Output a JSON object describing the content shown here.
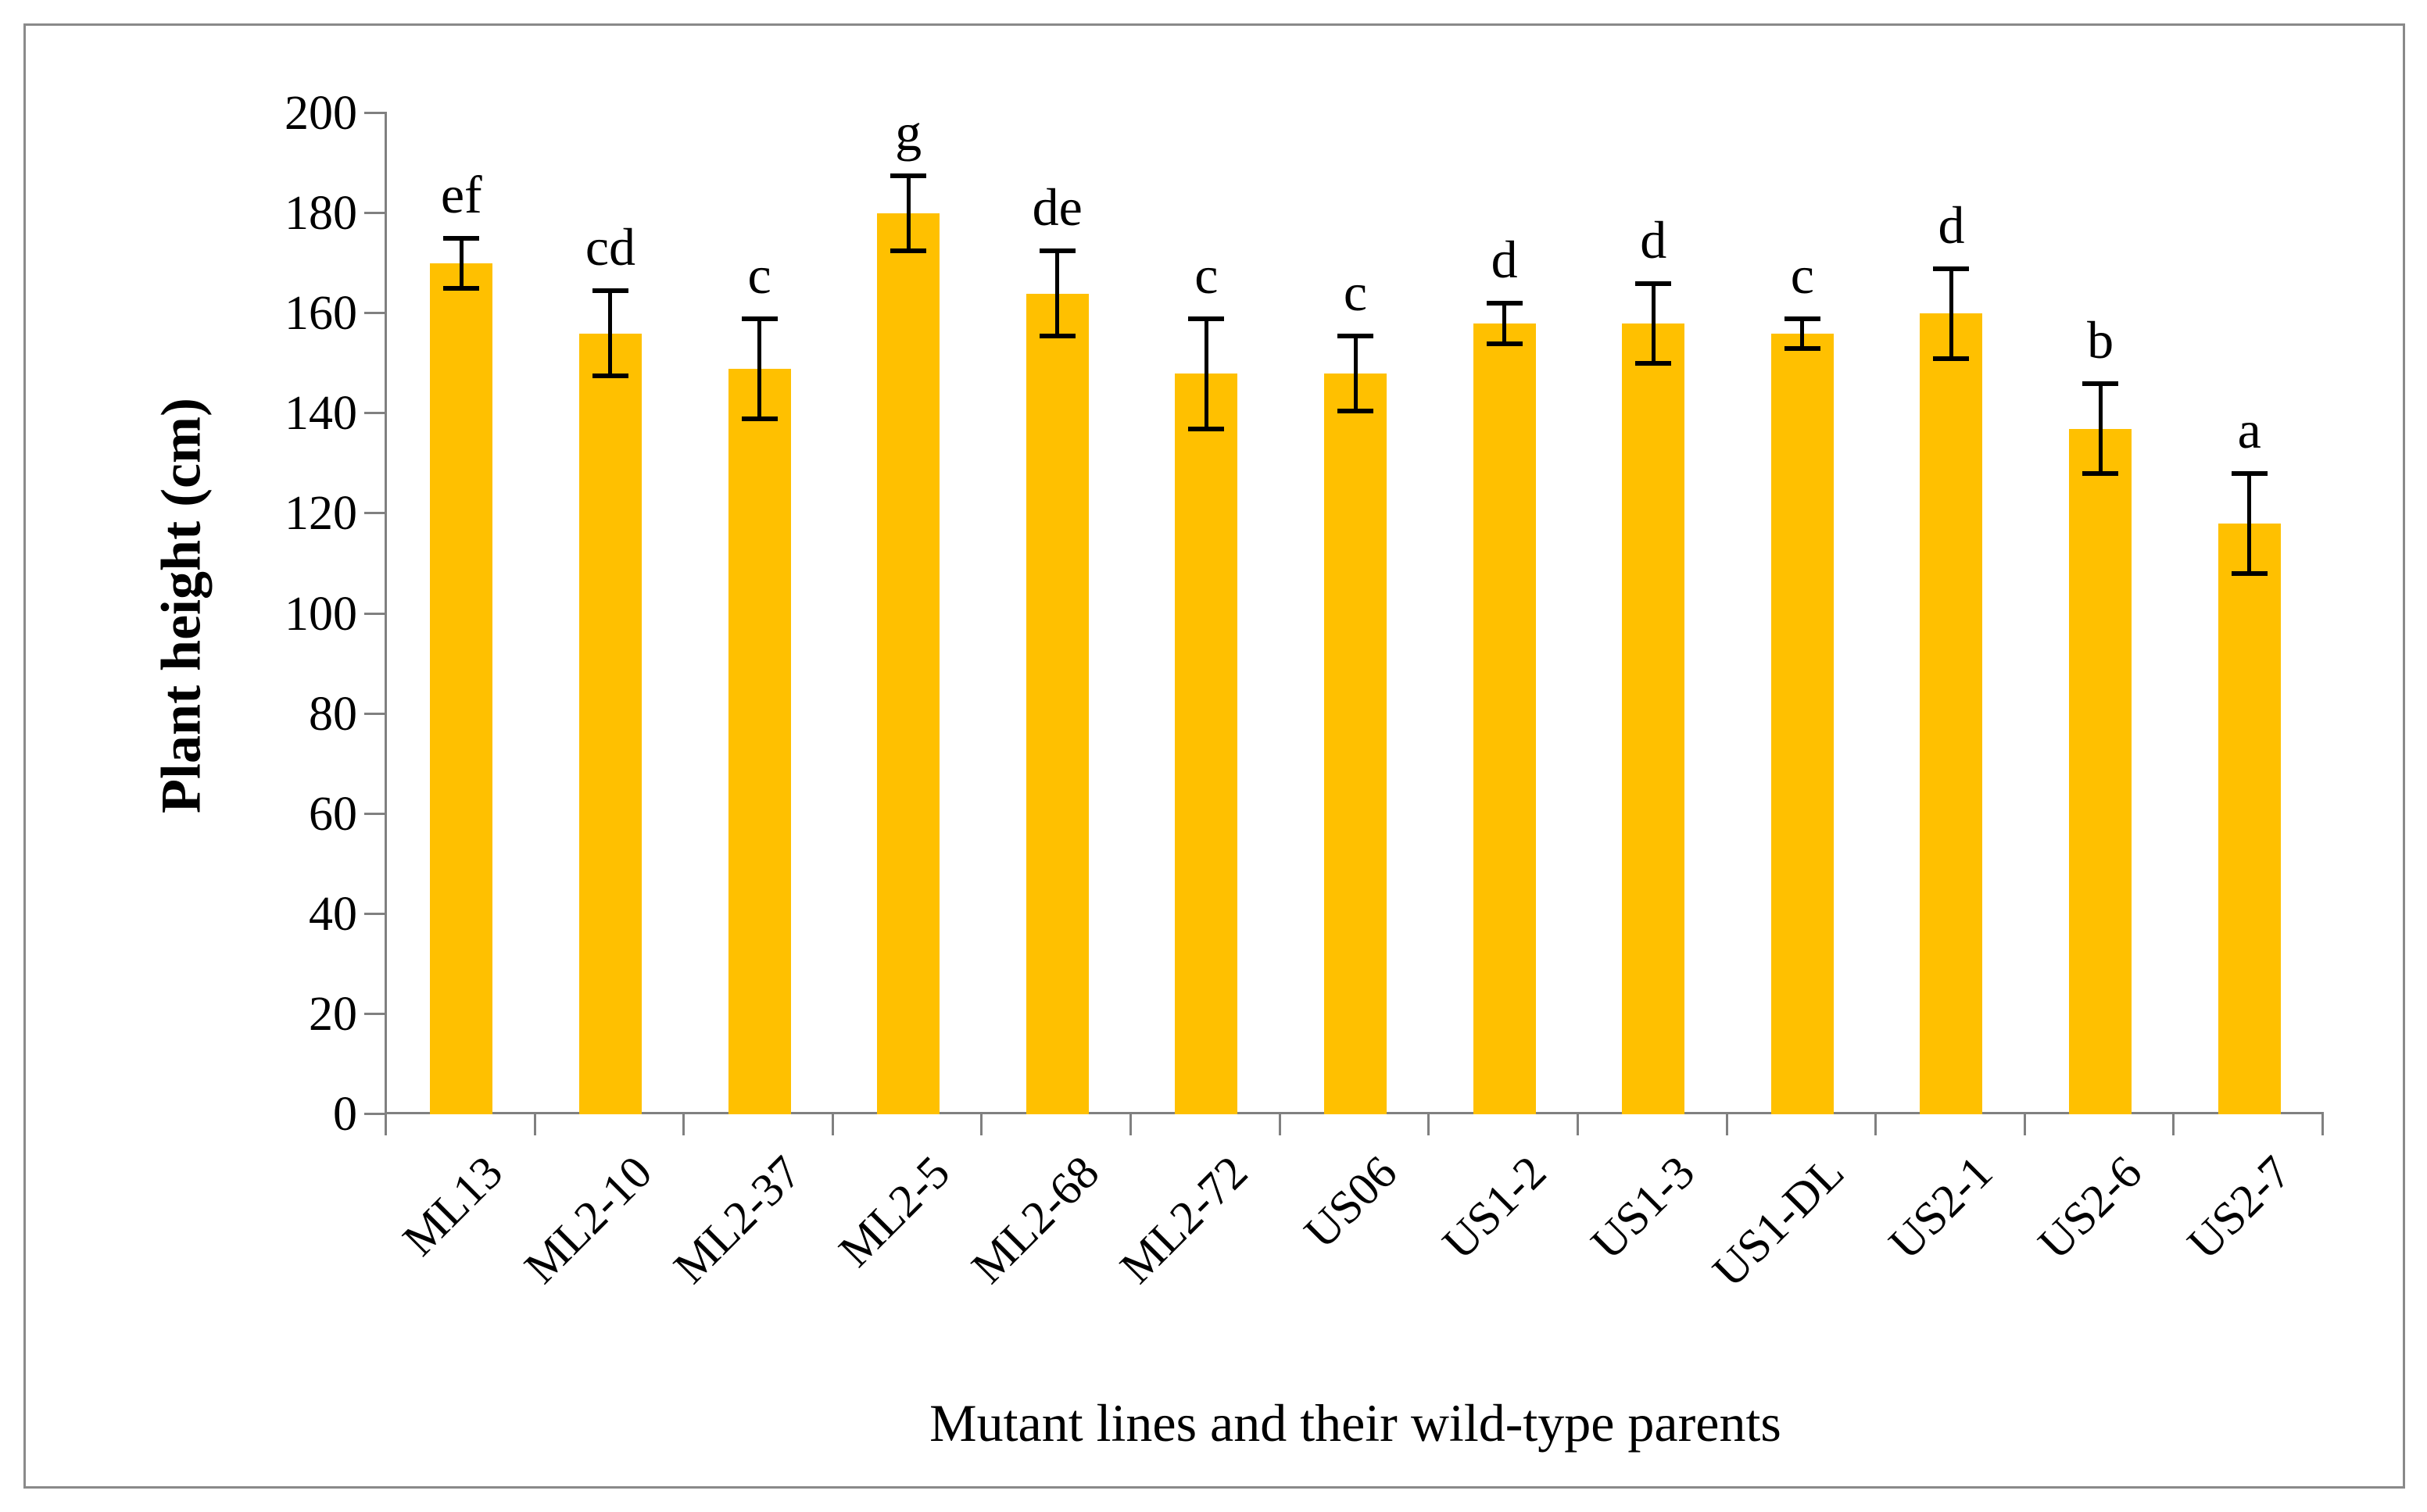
{
  "figure": {
    "background": "#FFFFFF",
    "frame_color": "#8A8A8A"
  },
  "chart_data": {
    "type": "bar",
    "title": "",
    "xlabel": "Mutant lines and their wild-type parents",
    "ylabel": "Plant height (cm)",
    "ylim": [
      0,
      200
    ],
    "ytick_step": 20,
    "yticks": [
      0,
      20,
      40,
      60,
      80,
      100,
      120,
      140,
      160,
      180,
      200
    ],
    "grid": false,
    "legend": null,
    "bar_color": "#FFC000",
    "axis_color": "#808080",
    "error_bar_color": "#000000",
    "categories": [
      "ML13",
      "ML2-10",
      "ML2-37",
      "ML2-5",
      "ML2-68",
      "ML2-72",
      "US06",
      "US1-2",
      "US1-3",
      "US1-DL",
      "US2-1",
      "US2-6",
      "US2-7"
    ],
    "values": [
      170,
      156,
      149,
      180,
      164,
      148,
      148,
      158,
      158,
      156,
      160,
      137,
      118
    ],
    "error_bars": [
      5,
      8.5,
      10,
      7.5,
      8.5,
      11,
      7.5,
      4,
      8,
      3,
      9,
      9,
      10
    ],
    "significance_letters": [
      "ef",
      "cd",
      "c",
      "g",
      "de",
      "c",
      "c",
      "d",
      "d",
      "c",
      "d",
      "b",
      "a"
    ]
  }
}
